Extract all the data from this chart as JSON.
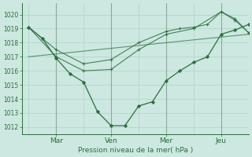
{
  "bg_color": "#cce8e0",
  "grid_color": "#b8d8d0",
  "vline_color": "#8aaa9a",
  "line_color": "#2d6e3e",
  "xlabel": "Pression niveau de la mer( hPa )",
  "ylim": [
    1011.5,
    1020.8
  ],
  "yticks": [
    1012,
    1013,
    1014,
    1015,
    1016,
    1017,
    1018,
    1019,
    1020
  ],
  "x_tick_labels": [
    "Mar",
    "Ven",
    "Mer",
    "Jeu"
  ],
  "x_tick_positions": [
    2,
    6,
    10,
    14
  ],
  "x_vline_positions": [
    2,
    6,
    10,
    14
  ],
  "xlim": [
    -0.5,
    16
  ],
  "series_detailed": {
    "x": [
      0,
      1,
      2,
      3,
      4,
      5,
      6,
      7,
      8,
      9,
      10,
      11,
      12,
      13,
      14,
      15,
      16
    ],
    "y": [
      1019.1,
      1018.3,
      1016.9,
      1015.8,
      1015.2,
      1013.1,
      1012.1,
      1012.1,
      1013.5,
      1013.8,
      1015.3,
      1016.0,
      1016.6,
      1017.0,
      1018.6,
      1018.9,
      1019.3
    ]
  },
  "series_smooth": {
    "x": [
      0,
      2,
      4,
      6,
      8,
      10,
      12,
      14,
      15,
      16
    ],
    "y": [
      1019.1,
      1017.0,
      1016.0,
      1016.1,
      1017.5,
      1018.6,
      1019.0,
      1020.2,
      1019.7,
      1018.7
    ]
  },
  "series_diagonal": {
    "x": [
      0,
      16
    ],
    "y": [
      1017.0,
      1018.6
    ]
  },
  "series_upper": {
    "x": [
      0,
      2,
      4,
      6,
      8,
      10,
      11,
      12,
      13,
      14,
      15,
      16
    ],
    "y": [
      1019.1,
      1017.5,
      1016.5,
      1016.8,
      1018.0,
      1018.8,
      1019.0,
      1019.1,
      1019.3,
      1020.2,
      1019.6,
      1018.7
    ]
  }
}
